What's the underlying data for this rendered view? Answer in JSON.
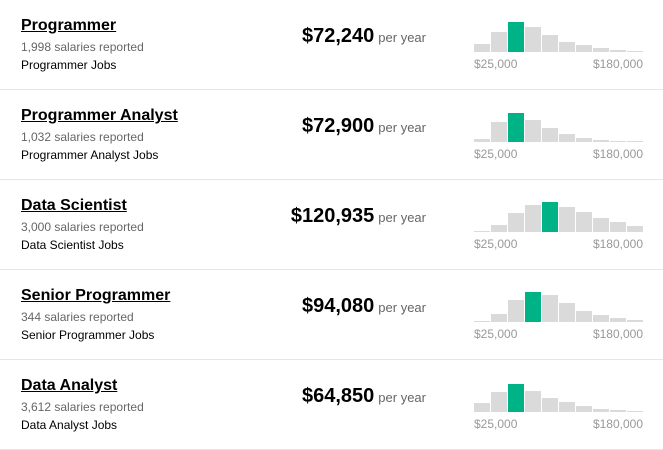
{
  "rows": [
    {
      "title": "Programmer",
      "reported": "1,998 salaries reported",
      "jobs": "Programmer Jobs",
      "salary": "$72,240",
      "period": "per year",
      "histogram": {
        "bars": [
          8,
          20,
          30,
          25,
          17,
          10,
          7,
          4,
          2,
          1
        ],
        "highlight": 2,
        "min_label": "$25,000",
        "max_label": "$180,000"
      }
    },
    {
      "title": "Programmer Analyst",
      "reported": "1,032 salaries reported",
      "jobs": "Programmer Analyst Jobs",
      "salary": "$72,900",
      "period": "per year",
      "histogram": {
        "bars": [
          3,
          20,
          29,
          22,
          14,
          8,
          4,
          2,
          1,
          1
        ],
        "highlight": 2,
        "min_label": "$25,000",
        "max_label": "$180,000"
      }
    },
    {
      "title": "Data Scientist",
      "reported": "3,000 salaries reported",
      "jobs": "Data Scientist Jobs",
      "salary": "$120,935",
      "period": "per year",
      "histogram": {
        "bars": [
          1,
          7,
          19,
          27,
          30,
          25,
          20,
          14,
          10,
          6
        ],
        "highlight": 4,
        "min_label": "$25,000",
        "max_label": "$180,000"
      }
    },
    {
      "title": "Senior Programmer",
      "reported": "344 salaries reported",
      "jobs": "Senior Programmer Jobs",
      "salary": "$94,080",
      "period": "per year",
      "histogram": {
        "bars": [
          1,
          8,
          22,
          30,
          27,
          19,
          11,
          7,
          4,
          2
        ],
        "highlight": 3,
        "min_label": "$25,000",
        "max_label": "$180,000"
      }
    },
    {
      "title": "Data Analyst",
      "reported": "3,612 salaries reported",
      "jobs": "Data Analyst Jobs",
      "salary": "$64,850",
      "period": "per year",
      "histogram": {
        "bars": [
          9,
          20,
          28,
          21,
          14,
          10,
          6,
          3,
          2,
          1
        ],
        "highlight": 2,
        "min_label": "$25,000",
        "max_label": "$180,000"
      }
    }
  ],
  "bar_color": "#dadada",
  "highlight_color": "#00b386"
}
